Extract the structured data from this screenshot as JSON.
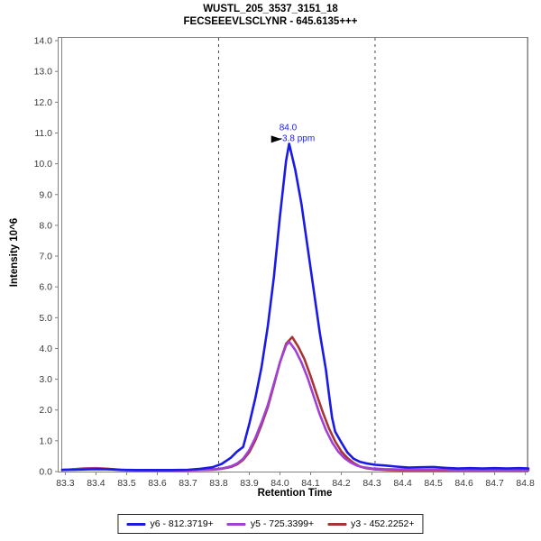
{
  "chart_data": {
    "type": "line",
    "title_lines": [
      "WUSTL_205_3537_3151_18",
      "FECSEEEVLSCLYNR - 645.6135+++"
    ],
    "axes": {
      "x": {
        "title": "Retention Time",
        "tick_start": 83.3,
        "tick_end": 84.8,
        "tick_step": 0.1,
        "domain": [
          83.287,
          84.807
        ]
      },
      "y": {
        "title": "Intensity 10^6",
        "tick_start": 0,
        "tick_end": 14,
        "tick_step": 1,
        "domain": [
          0,
          14.09
        ]
      }
    },
    "grid": false,
    "legend": {
      "position": "bottom-center",
      "bordered": true
    },
    "colors": {
      "frame": "#808080",
      "tick_label": "#3a3a3a",
      "boundary": "#4a4a4a"
    },
    "integration_boundaries": {
      "start": 83.8,
      "end": 84.31,
      "style": "dashed"
    },
    "peak_annotation": {
      "rt": 84.03,
      "intensity": 10.65,
      "rt_label": "84.0",
      "ppm_label": "-3.8 ppm",
      "color": "#1a1aee",
      "pointer": "right-arrowhead"
    },
    "series": [
      {
        "id": "y6",
        "name": "y6 - 812.3719+",
        "color": "#1a1ae6",
        "points": [
          [
            83.29,
            0.06
          ],
          [
            83.33,
            0.06
          ],
          [
            83.37,
            0.07
          ],
          [
            83.41,
            0.08
          ],
          [
            83.45,
            0.07
          ],
          [
            83.5,
            0.05
          ],
          [
            83.55,
            0.05
          ],
          [
            83.6,
            0.05
          ],
          [
            83.65,
            0.05
          ],
          [
            83.7,
            0.06
          ],
          [
            83.74,
            0.09
          ],
          [
            83.78,
            0.14
          ],
          [
            83.81,
            0.25
          ],
          [
            83.84,
            0.45
          ],
          [
            83.86,
            0.65
          ],
          [
            83.88,
            0.8
          ],
          [
            83.9,
            1.55
          ],
          [
            83.92,
            2.4
          ],
          [
            83.94,
            3.4
          ],
          [
            83.96,
            4.7
          ],
          [
            83.98,
            6.3
          ],
          [
            84.0,
            8.3
          ],
          [
            84.02,
            10.1
          ],
          [
            84.03,
            10.65
          ],
          [
            84.05,
            9.8
          ],
          [
            84.07,
            8.7
          ],
          [
            84.09,
            7.3
          ],
          [
            84.11,
            5.9
          ],
          [
            84.13,
            4.5
          ],
          [
            84.15,
            3.3
          ],
          [
            84.16,
            2.5
          ],
          [
            84.17,
            1.75
          ],
          [
            84.18,
            1.3
          ],
          [
            84.2,
            0.95
          ],
          [
            84.22,
            0.62
          ],
          [
            84.24,
            0.42
          ],
          [
            84.26,
            0.32
          ],
          [
            84.28,
            0.27
          ],
          [
            84.31,
            0.22
          ],
          [
            84.34,
            0.2
          ],
          [
            84.38,
            0.16
          ],
          [
            84.42,
            0.13
          ],
          [
            84.46,
            0.14
          ],
          [
            84.5,
            0.15
          ],
          [
            84.54,
            0.12
          ],
          [
            84.58,
            0.1
          ],
          [
            84.62,
            0.11
          ],
          [
            84.66,
            0.1
          ],
          [
            84.7,
            0.11
          ],
          [
            84.74,
            0.1
          ],
          [
            84.78,
            0.11
          ],
          [
            84.81,
            0.1
          ]
        ]
      },
      {
        "id": "y5",
        "name": "y5 - 725.3399+",
        "color": "#a13fd6",
        "points": [
          [
            83.29,
            0.05
          ],
          [
            83.33,
            0.07
          ],
          [
            83.36,
            0.09
          ],
          [
            83.4,
            0.1
          ],
          [
            83.44,
            0.08
          ],
          [
            83.48,
            0.05
          ],
          [
            83.53,
            0.04
          ],
          [
            83.58,
            0.04
          ],
          [
            83.63,
            0.04
          ],
          [
            83.68,
            0.04
          ],
          [
            83.73,
            0.05
          ],
          [
            83.78,
            0.07
          ],
          [
            83.81,
            0.1
          ],
          [
            83.84,
            0.17
          ],
          [
            83.86,
            0.26
          ],
          [
            83.88,
            0.42
          ],
          [
            83.9,
            0.7
          ],
          [
            83.92,
            1.1
          ],
          [
            83.94,
            1.6
          ],
          [
            83.96,
            2.15
          ],
          [
            83.98,
            2.85
          ],
          [
            84.0,
            3.55
          ],
          [
            84.02,
            4.1
          ],
          [
            84.03,
            4.22
          ],
          [
            84.05,
            3.95
          ],
          [
            84.07,
            3.55
          ],
          [
            84.09,
            3.05
          ],
          [
            84.11,
            2.45
          ],
          [
            84.13,
            1.85
          ],
          [
            84.15,
            1.35
          ],
          [
            84.17,
            0.95
          ],
          [
            84.19,
            0.65
          ],
          [
            84.21,
            0.44
          ],
          [
            84.23,
            0.3
          ],
          [
            84.25,
            0.2
          ],
          [
            84.27,
            0.14
          ],
          [
            84.3,
            0.1
          ],
          [
            84.34,
            0.08
          ],
          [
            84.38,
            0.07
          ],
          [
            84.43,
            0.06
          ],
          [
            84.48,
            0.06
          ],
          [
            84.53,
            0.06
          ],
          [
            84.58,
            0.05
          ],
          [
            84.63,
            0.05
          ],
          [
            84.68,
            0.05
          ],
          [
            84.73,
            0.05
          ],
          [
            84.78,
            0.05
          ],
          [
            84.81,
            0.05
          ]
        ]
      },
      {
        "id": "y3",
        "name": "y3 - 452.2252+",
        "color": "#a83434",
        "points": [
          [
            83.29,
            0.05
          ],
          [
            83.33,
            0.08
          ],
          [
            83.36,
            0.1
          ],
          [
            83.4,
            0.11
          ],
          [
            83.44,
            0.09
          ],
          [
            83.48,
            0.06
          ],
          [
            83.53,
            0.05
          ],
          [
            83.58,
            0.04
          ],
          [
            83.63,
            0.04
          ],
          [
            83.68,
            0.04
          ],
          [
            83.73,
            0.05
          ],
          [
            83.78,
            0.06
          ],
          [
            83.81,
            0.09
          ],
          [
            83.84,
            0.15
          ],
          [
            83.86,
            0.23
          ],
          [
            83.88,
            0.38
          ],
          [
            83.9,
            0.63
          ],
          [
            83.92,
            1.02
          ],
          [
            83.94,
            1.52
          ],
          [
            83.96,
            2.08
          ],
          [
            83.98,
            2.8
          ],
          [
            84.0,
            3.55
          ],
          [
            84.02,
            4.15
          ],
          [
            84.04,
            4.37
          ],
          [
            84.06,
            4.05
          ],
          [
            84.08,
            3.65
          ],
          [
            84.1,
            3.1
          ],
          [
            84.12,
            2.5
          ],
          [
            84.14,
            1.92
          ],
          [
            84.16,
            1.4
          ],
          [
            84.18,
            0.98
          ],
          [
            84.2,
            0.66
          ],
          [
            84.22,
            0.44
          ],
          [
            84.24,
            0.28
          ],
          [
            84.26,
            0.17
          ],
          [
            84.28,
            0.11
          ],
          [
            84.31,
            0.07
          ],
          [
            84.35,
            0.05
          ],
          [
            84.4,
            0.04
          ],
          [
            84.45,
            0.04
          ],
          [
            84.5,
            0.04
          ],
          [
            84.55,
            0.04
          ],
          [
            84.6,
            0.04
          ],
          [
            84.65,
            0.04
          ],
          [
            84.7,
            0.04
          ],
          [
            84.75,
            0.04
          ],
          [
            84.81,
            0.04
          ]
        ]
      }
    ]
  }
}
